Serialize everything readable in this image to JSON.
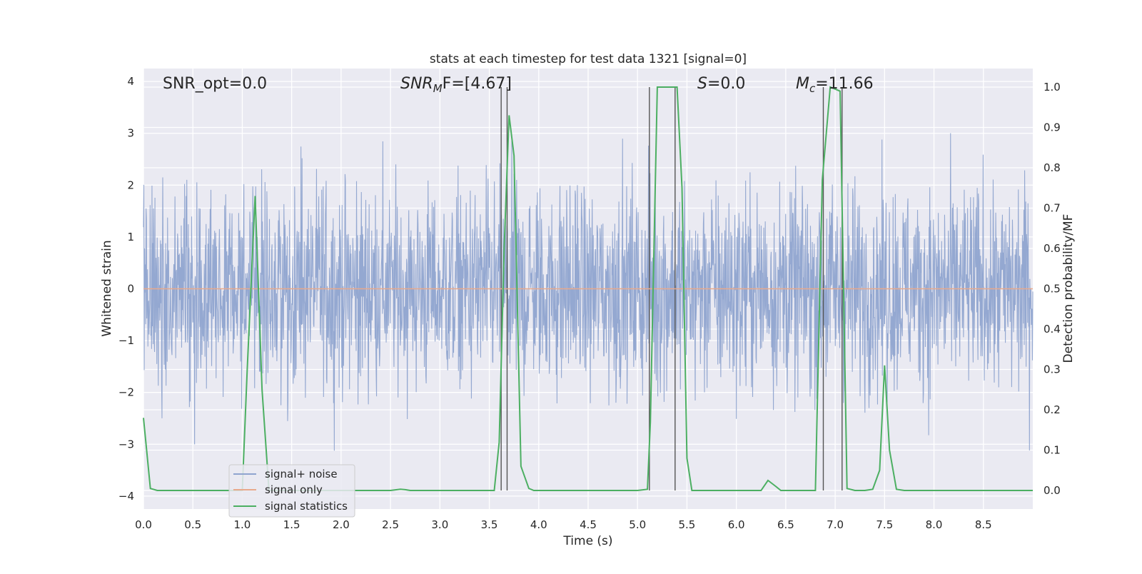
{
  "chart_data": {
    "type": "line",
    "title": "stats at each timestep for test data 1321 [signal=0]",
    "xlabel": "Time (s)",
    "ylabel": "Whitened strain",
    "y2label": "Detection probability/MF",
    "xlim": [
      0.0,
      9.0
    ],
    "ylim": [
      -4.25,
      4.25
    ],
    "y2lim": [
      -0.046,
      1.046
    ],
    "x_ticks": [
      "0.0",
      "0.5",
      "1.0",
      "1.5",
      "2.0",
      "2.5",
      "3.0",
      "3.5",
      "4.0",
      "4.5",
      "5.0",
      "5.5",
      "6.0",
      "6.5",
      "7.0",
      "7.5",
      "8.0",
      "8.5"
    ],
    "y_ticks": [
      "4",
      "3",
      "2",
      "1",
      "0",
      "−1",
      "−2",
      "−3",
      "−4"
    ],
    "y2_ticks": [
      "1.0",
      "0.9",
      "0.8",
      "0.7",
      "0.6",
      "0.5",
      "0.4",
      "0.3",
      "0.2",
      "0.1",
      "0.0"
    ],
    "grid": true,
    "legend_position": "lower-left",
    "annotations": {
      "snr_opt": "SNR_opt=0.0",
      "snr_mf_main": "SNR",
      "snr_mf_sub": "M",
      "snr_mf_rest": "F=[4.67]",
      "s_main": "S",
      "s_rest": "=0.0",
      "mc_main": "M",
      "mc_sub": "c",
      "mc_rest": "=11.66"
    },
    "series": [
      {
        "name": "signal+ noise",
        "color": "#8fa4cf",
        "description": "whitened strain noise, approx. Gaussian, amplitude within about ±3.6"
      },
      {
        "name": "signal only",
        "color": "#e8a98c",
        "values_constant": 0.0
      },
      {
        "name": "signal statistics",
        "color": "#4caf62",
        "axis": "right",
        "x": [
          0.0,
          0.07,
          0.14,
          0.2,
          0.3,
          0.5,
          0.7,
          0.9,
          0.95,
          1.0,
          1.05,
          1.13,
          1.2,
          1.27,
          1.3,
          1.5,
          2.0,
          2.5,
          2.6,
          2.65,
          2.7,
          3.0,
          3.5,
          3.55,
          3.6,
          3.65,
          3.7,
          3.75,
          3.82,
          3.9,
          3.95,
          4.0,
          4.5,
          5.0,
          5.1,
          5.13,
          5.2,
          5.25,
          5.35,
          5.4,
          5.45,
          5.5,
          5.55,
          5.6,
          6.0,
          6.25,
          6.32,
          6.4,
          6.45,
          6.5,
          6.8,
          6.87,
          6.95,
          7.05,
          7.12,
          7.2,
          7.3,
          7.38,
          7.45,
          7.5,
          7.55,
          7.62,
          7.7,
          8.0,
          8.5,
          9.0
        ],
        "y": [
          0.18,
          0.005,
          0.0,
          0.0,
          0.0,
          0.0,
          0.0,
          0.0,
          0.0,
          0.0,
          0.3,
          0.73,
          0.25,
          0.0,
          0.0,
          0.0,
          0.0,
          0.0,
          0.003,
          0.002,
          0.0,
          0.0,
          0.0,
          0.0,
          0.12,
          0.6,
          0.93,
          0.83,
          0.06,
          0.005,
          0.0,
          0.0,
          0.0,
          0.0,
          0.003,
          0.17,
          1.0,
          1.0,
          1.0,
          1.0,
          0.75,
          0.08,
          0.0,
          0.0,
          0.0,
          0.0,
          0.025,
          0.01,
          0.0,
          0.0,
          0.0,
          0.77,
          1.0,
          0.99,
          0.005,
          0.0,
          0.0,
          0.003,
          0.05,
          0.31,
          0.1,
          0.003,
          0.0,
          0.0,
          0.0,
          0.0
        ]
      }
    ],
    "vertical_markers": [
      3.62,
      3.68,
      5.12,
      5.38,
      6.88,
      7.07
    ],
    "legend": {
      "items": [
        "signal+ noise",
        "signal only",
        "signal statistics"
      ]
    }
  }
}
